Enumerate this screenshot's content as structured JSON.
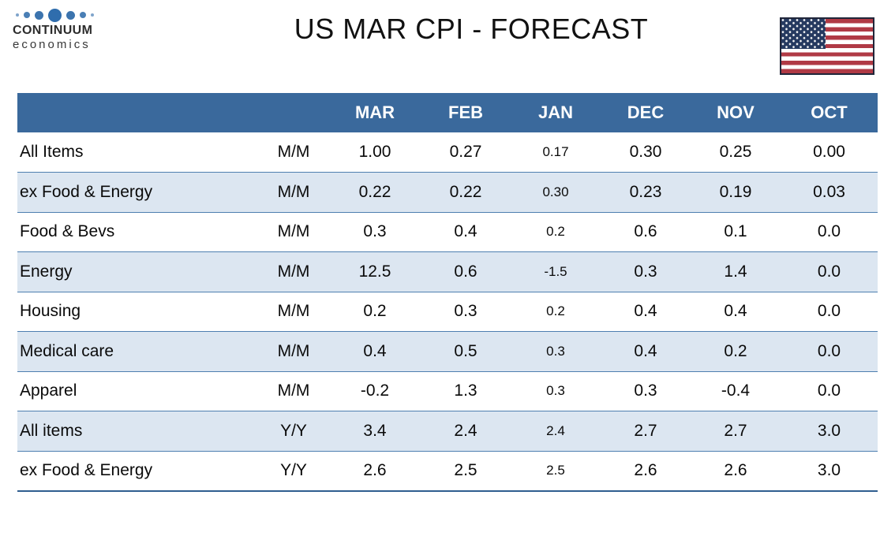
{
  "header": {
    "title": "US MAR CPI - FORECAST",
    "logo": {
      "name": "CONTINUUM",
      "subname": "economics"
    },
    "flag": "us-flag"
  },
  "colors": {
    "table_header_bg": "#3a699c",
    "table_header_text": "#ffffff",
    "row_shaded_bg": "#dce6f1",
    "row_shaded_border": "#4e7fb0",
    "table_bottom_rule": "#2f5e8f",
    "logo_dot_blue": "#2f6dad",
    "flag_red": "#b03a45",
    "flag_canton_navy": "#263a60"
  },
  "table": {
    "columns": [
      "",
      "",
      "MAR",
      "FEB",
      "JAN",
      "DEC",
      "NOV",
      "OCT"
    ],
    "rows": [
      {
        "label": "All Items",
        "freq": "M/M",
        "values": [
          "1.00",
          "0.27",
          "0.17",
          "0.30",
          "0.25",
          "0.00"
        ]
      },
      {
        "label": "ex Food & Energy",
        "freq": "M/M",
        "values": [
          "0.22",
          "0.22",
          "0.30",
          "0.23",
          "0.19",
          "0.03"
        ]
      },
      {
        "label": "Food & Bevs",
        "freq": "M/M",
        "values": [
          "0.3",
          "0.4",
          "0.2",
          "0.6",
          "0.1",
          "0.0"
        ]
      },
      {
        "label": "Energy",
        "freq": "M/M",
        "values": [
          "12.5",
          "0.6",
          "-1.5",
          "0.3",
          "1.4",
          "0.0"
        ]
      },
      {
        "label": "Housing",
        "freq": "M/M",
        "values": [
          "0.2",
          "0.3",
          "0.2",
          "0.4",
          "0.4",
          "0.0"
        ]
      },
      {
        "label": "Medical care",
        "freq": "M/M",
        "values": [
          "0.4",
          "0.5",
          "0.3",
          "0.4",
          "0.2",
          "0.0"
        ]
      },
      {
        "label": "Apparel",
        "freq": "M/M",
        "values": [
          "-0.2",
          "1.3",
          "0.3",
          "0.3",
          "-0.4",
          "0.0"
        ]
      },
      {
        "label": "All items",
        "freq": "Y/Y",
        "values": [
          "3.4",
          "2.4",
          "2.4",
          "2.7",
          "2.7",
          "3.0"
        ]
      },
      {
        "label": "ex Food & Energy",
        "freq": "Y/Y",
        "values": [
          "2.6",
          "2.5",
          "2.5",
          "2.6",
          "2.6",
          "3.0"
        ]
      }
    ]
  },
  "chart_data": {
    "type": "table",
    "title": "US MAR CPI - FORECAST",
    "columns": [
      "MAR",
      "FEB",
      "JAN",
      "DEC",
      "NOV",
      "OCT"
    ],
    "row_headers": [
      "category",
      "measure"
    ],
    "rows": [
      {
        "label": "All Items",
        "measure": "M/M",
        "values": [
          1.0,
          0.27,
          0.17,
          0.3,
          0.25,
          0.0
        ]
      },
      {
        "label": "ex Food & Energy",
        "measure": "M/M",
        "values": [
          0.22,
          0.22,
          0.3,
          0.23,
          0.19,
          0.03
        ]
      },
      {
        "label": "Food & Bevs",
        "measure": "M/M",
        "values": [
          0.3,
          0.4,
          0.2,
          0.6,
          0.1,
          0.0
        ]
      },
      {
        "label": "Energy",
        "measure": "M/M",
        "values": [
          12.5,
          0.6,
          -1.5,
          0.3,
          1.4,
          0.0
        ]
      },
      {
        "label": "Housing",
        "measure": "M/M",
        "values": [
          0.2,
          0.3,
          0.2,
          0.4,
          0.4,
          0.0
        ]
      },
      {
        "label": "Medical care",
        "measure": "M/M",
        "values": [
          0.4,
          0.5,
          0.3,
          0.4,
          0.2,
          0.0
        ]
      },
      {
        "label": "Apparel",
        "measure": "M/M",
        "values": [
          -0.2,
          1.3,
          0.3,
          0.3,
          -0.4,
          0.0
        ]
      },
      {
        "label": "All items",
        "measure": "Y/Y",
        "values": [
          3.4,
          2.4,
          2.4,
          2.7,
          2.7,
          3.0
        ]
      },
      {
        "label": "ex Food & Energy",
        "measure": "Y/Y",
        "values": [
          2.6,
          2.5,
          2.5,
          2.6,
          2.6,
          3.0
        ]
      }
    ]
  }
}
